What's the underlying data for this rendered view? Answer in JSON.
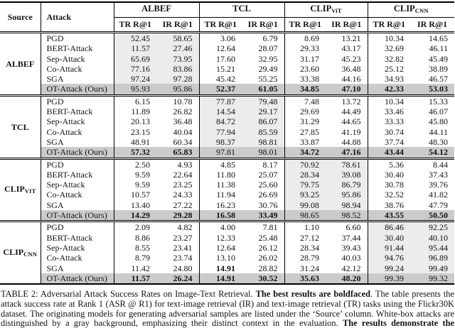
{
  "colors": {
    "whitebox_bg": "#ececec",
    "ours_bg": "#cbcbcb",
    "rule": "#000000"
  },
  "header": {
    "source": "Source",
    "attack": "Attack",
    "groups": [
      {
        "label": "ALBEF",
        "sub": ""
      },
      {
        "label": "TCL",
        "sub": ""
      },
      {
        "label": "CLIP",
        "sub": "ViT"
      },
      {
        "label": "CLIP",
        "sub": "CNN"
      }
    ],
    "subcols": [
      "TR R@1",
      "IR R@1"
    ]
  },
  "blocks": [
    {
      "source": {
        "label": "ALBEF",
        "sub": ""
      },
      "whitebox_group": 0,
      "rows": [
        {
          "attack": "PGD",
          "values": [
            "52.45",
            "58.65",
            "3.06",
            "6.79",
            "8.69",
            "13.21",
            "10.34",
            "14.65"
          ],
          "bold": [
            0,
            0,
            0,
            0,
            0,
            0,
            0,
            0
          ],
          "ours": false
        },
        {
          "attack": "BERT-Attack",
          "values": [
            "11.57",
            "27.46",
            "12.64",
            "28.07",
            "29.33",
            "43.17",
            "32.69",
            "46.11"
          ],
          "bold": [
            0,
            0,
            0,
            0,
            0,
            0,
            0,
            0
          ],
          "ours": false
        },
        {
          "attack": "Sep-Attack",
          "values": [
            "65.69",
            "73.95",
            "17.60",
            "32.95",
            "31.17",
            "45.23",
            "32.82",
            "45.49"
          ],
          "bold": [
            0,
            0,
            0,
            0,
            0,
            0,
            0,
            0
          ],
          "ours": false
        },
        {
          "attack": "Co-Attack",
          "values": [
            "77.16",
            "83.86",
            "15.21",
            "29.49",
            "23.60",
            "36.48",
            "25.12",
            "38.89"
          ],
          "bold": [
            0,
            0,
            0,
            0,
            0,
            0,
            0,
            0
          ],
          "ours": false
        },
        {
          "attack": "SGA",
          "values": [
            "97.24",
            "97.28",
            "45.42",
            "55.25",
            "33.38",
            "44.16",
            "34.93",
            "46.57"
          ],
          "bold": [
            0,
            0,
            0,
            0,
            0,
            0,
            0,
            0
          ],
          "ours": false
        },
        {
          "attack": "OT-Attack (Ours)",
          "values": [
            "95.93",
            "95.86",
            "52.37",
            "61.05",
            "34.85",
            "47.10",
            "42.33",
            "53.03"
          ],
          "bold": [
            0,
            0,
            1,
            1,
            1,
            1,
            1,
            1
          ],
          "ours": true
        }
      ]
    },
    {
      "source": {
        "label": "TCL",
        "sub": ""
      },
      "whitebox_group": 1,
      "rows": [
        {
          "attack": "PGD",
          "values": [
            "6.15",
            "10.78",
            "77.87",
            "79.48",
            "7.48",
            "13.72",
            "10.34",
            "15.33"
          ],
          "bold": [
            0,
            0,
            0,
            0,
            0,
            0,
            0,
            0
          ],
          "ours": false
        },
        {
          "attack": "BERT-Attack",
          "values": [
            "11.89",
            "26.82",
            "14.54",
            "29.17",
            "29.69",
            "44.49",
            "33.46",
            "46.07"
          ],
          "bold": [
            0,
            0,
            0,
            0,
            0,
            0,
            0,
            0
          ],
          "ours": false
        },
        {
          "attack": "Sep-Attack",
          "values": [
            "20.13",
            "36.48",
            "84.72",
            "86.07",
            "31.29",
            "44.65",
            "33.33",
            "45.80"
          ],
          "bold": [
            0,
            0,
            0,
            0,
            0,
            0,
            0,
            0
          ],
          "ours": false
        },
        {
          "attack": "Co-Attack",
          "values": [
            "23.15",
            "40.04",
            "77.94",
            "85.59",
            "27.85",
            "41.19",
            "30.74",
            "44.11"
          ],
          "bold": [
            0,
            0,
            0,
            0,
            0,
            0,
            0,
            0
          ],
          "ours": false
        },
        {
          "attack": "SGA",
          "values": [
            "48.91",
            "60.34",
            "98.37",
            "98.81",
            "33.87",
            "44.88",
            "37.74",
            "48.30"
          ],
          "bold": [
            0,
            0,
            0,
            0,
            0,
            0,
            0,
            0
          ],
          "ours": false
        },
        {
          "attack": "OT-Attack (Ours)",
          "values": [
            "57.32",
            "65.83",
            "97.81",
            "98.01",
            "34.72",
            "47.16",
            "43.44",
            "54.12"
          ],
          "bold": [
            1,
            1,
            0,
            0,
            1,
            1,
            1,
            1
          ],
          "ours": true
        }
      ]
    },
    {
      "source": {
        "label": "CLIP",
        "sub": "VIT"
      },
      "whitebox_group": 2,
      "rows": [
        {
          "attack": "PGD",
          "values": [
            "2.50",
            "4.93",
            "4.85",
            "8.17",
            "70.92",
            "78.61",
            "5.36",
            "8.44"
          ],
          "bold": [
            0,
            0,
            0,
            0,
            0,
            0,
            0,
            0
          ],
          "ours": false
        },
        {
          "attack": "BERT-Attack",
          "values": [
            "9.59",
            "22.64",
            "11.80",
            "25.07",
            "28.34",
            "39.08",
            "30.40",
            "37.43"
          ],
          "bold": [
            0,
            0,
            0,
            0,
            0,
            0,
            0,
            0
          ],
          "ours": false
        },
        {
          "attack": "Sep-Attack",
          "values": [
            "9.59",
            "23.25",
            "11.38",
            "25.60",
            "79.75",
            "86.79",
            "30.78",
            "39.76"
          ],
          "bold": [
            0,
            0,
            0,
            0,
            0,
            0,
            0,
            0
          ],
          "ours": false
        },
        {
          "attack": "Co-Attack",
          "values": [
            "10.57",
            "24.33",
            "11.94",
            "26.69",
            "93.25",
            "95.86",
            "32.52",
            "41.82"
          ],
          "bold": [
            0,
            0,
            0,
            0,
            0,
            0,
            0,
            0
          ],
          "ours": false
        },
        {
          "attack": "SGA",
          "values": [
            "13.40",
            "27.22",
            "16.23",
            "30.76",
            "99.08",
            "98.94",
            "38.76",
            "47.79"
          ],
          "bold": [
            0,
            0,
            0,
            0,
            0,
            0,
            0,
            0
          ],
          "ours": false
        },
        {
          "attack": "OT-Attack (Ours)",
          "values": [
            "14.29",
            "29.28",
            "16.58",
            "33.49",
            "98.65",
            "98.52",
            "43.55",
            "50.50"
          ],
          "bold": [
            1,
            1,
            1,
            1,
            0,
            0,
            1,
            1
          ],
          "ours": true
        }
      ]
    },
    {
      "source": {
        "label": "CLIP",
        "sub": "CNN"
      },
      "whitebox_group": 3,
      "rows": [
        {
          "attack": "PGD",
          "values": [
            "2.09",
            "4.82",
            "4.00",
            "7.81",
            "1.10",
            "6.60",
            "86.46",
            "92.25"
          ],
          "bold": [
            0,
            0,
            0,
            0,
            0,
            0,
            0,
            0
          ],
          "ours": false
        },
        {
          "attack": "BERT-Attack",
          "values": [
            "8.86",
            "23.27",
            "12.33",
            "25.48",
            "27.12",
            "37.44",
            "30.40",
            "40.10"
          ],
          "bold": [
            0,
            0,
            0,
            0,
            0,
            0,
            0,
            0
          ],
          "ours": false
        },
        {
          "attack": "Sep-Attack",
          "values": [
            "8.55",
            "23.41",
            "12.64",
            "26.12",
            "28.34",
            "39.43",
            "91.44",
            "95.44"
          ],
          "bold": [
            0,
            0,
            0,
            0,
            0,
            0,
            0,
            0
          ],
          "ours": false
        },
        {
          "attack": "Co-Attack",
          "values": [
            "8.79",
            "23.74",
            "13.10",
            "26.02",
            "28.79",
            "40.03",
            "94.76",
            "96.89"
          ],
          "bold": [
            0,
            0,
            0,
            0,
            0,
            0,
            0,
            0
          ],
          "ours": false
        },
        {
          "attack": "SGA",
          "values": [
            "11.42",
            "24.80",
            "14.91",
            "28.82",
            "31.24",
            "42.12",
            "99.24",
            "99.49"
          ],
          "bold": [
            0,
            0,
            1,
            0,
            0,
            0,
            0,
            0
          ],
          "ours": false
        },
        {
          "attack": "OT-Attack (Ours)",
          "values": [
            "11.57",
            "26.24",
            "14.91",
            "30.52",
            "35.63",
            "48.20",
            "99.39",
            "99.32"
          ],
          "bold": [
            1,
            1,
            1,
            1,
            1,
            1,
            0,
            0
          ],
          "ours": true
        }
      ]
    }
  ],
  "caption": {
    "parts": [
      {
        "text": "TABLE 2: Adversarial Attack Success Rates on Image-Text Retrieval. ",
        "bold": false
      },
      {
        "text": "The best results are boldfaced",
        "bold": true
      },
      {
        "text": ". The table presents the attack success rate at Rank 1 (ASR @ R1) for text-image retrieval (IR) and text-image retrieval (TR) tasks using the Flickr30K dataset. The originating models for generating adversarial samples are listed under the ‘Source’ column. White-box attacks are distinguished by a gray background, emphasizing their distinct context in the evaluation. ",
        "bold": false
      },
      {
        "text": "The results demonstrate the proposed OT-Attack’s impressive performance in achieving SOTA transferability of adversarial",
        "bold": true
      }
    ]
  }
}
